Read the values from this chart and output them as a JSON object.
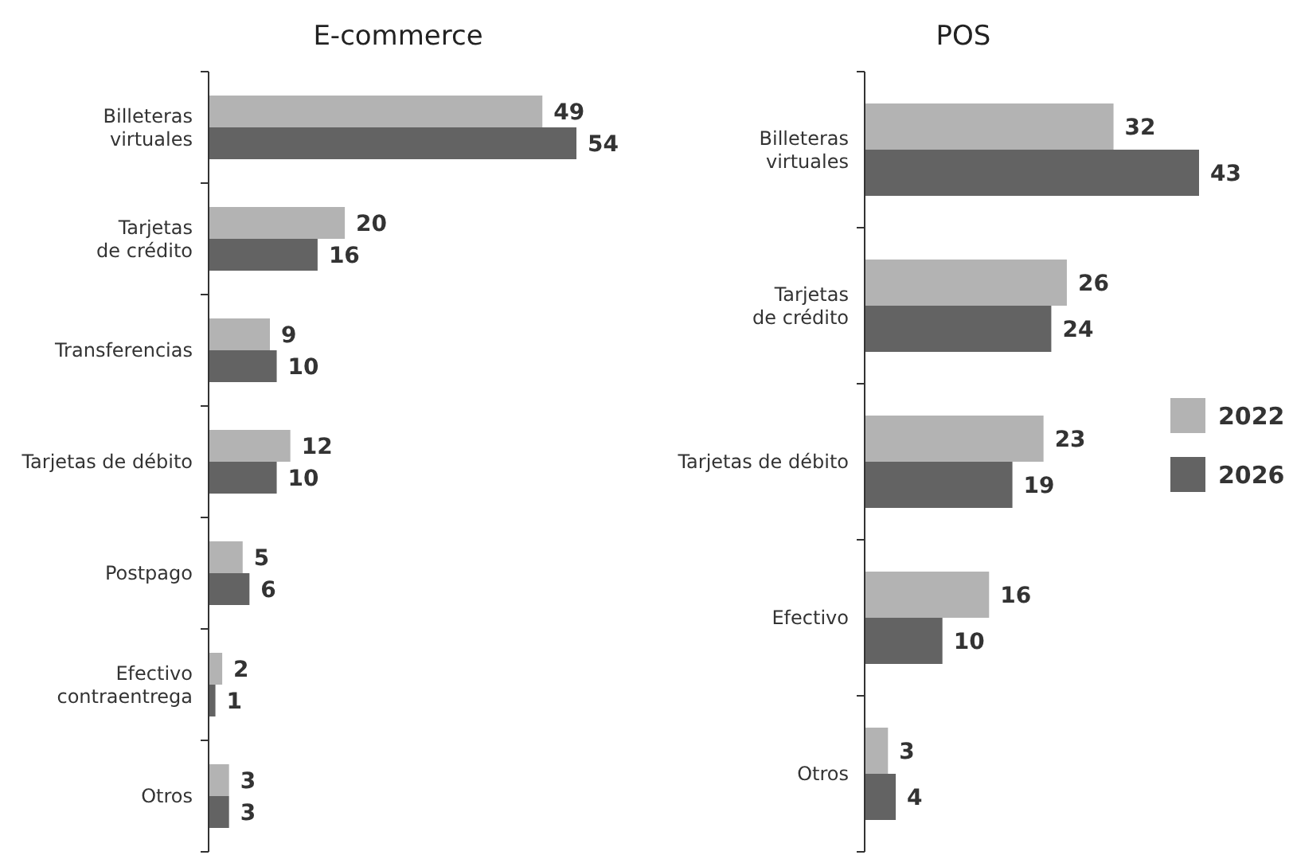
{
  "chart_data": [
    {
      "type": "bar",
      "orientation": "horizontal",
      "title": "E-commerce",
      "categories": [
        "Billeteras virtuales",
        "Tarjetas de crédito",
        "Transferencias",
        "Tarjetas de débito",
        "Postpago",
        "Efectivo contraentrega",
        "Otros"
      ],
      "series": [
        {
          "color": "#b3b3b3",
          "values": [
            49,
            20,
            9,
            12,
            5,
            2,
            3
          ]
        },
        {
          "color": "#636363",
          "values": [
            54,
            16,
            10,
            10,
            6,
            1,
            3
          ]
        }
      ],
      "data_labels": true,
      "legend": false
    },
    {
      "type": "bar",
      "orientation": "horizontal",
      "title": "POS",
      "categories": [
        "Billeteras virtuales",
        "Tarjetas de crédito",
        "Tarjetas de débito",
        "Efectivo",
        "Otros"
      ],
      "series": [
        {
          "name": "2022",
          "color": "#b3b3b3",
          "values": [
            32,
            26,
            23,
            16,
            3
          ]
        },
        {
          "name": "2026",
          "color": "#636363",
          "values": [
            43,
            24,
            19,
            10,
            4
          ]
        }
      ],
      "data_labels": true,
      "legend": "right"
    }
  ]
}
